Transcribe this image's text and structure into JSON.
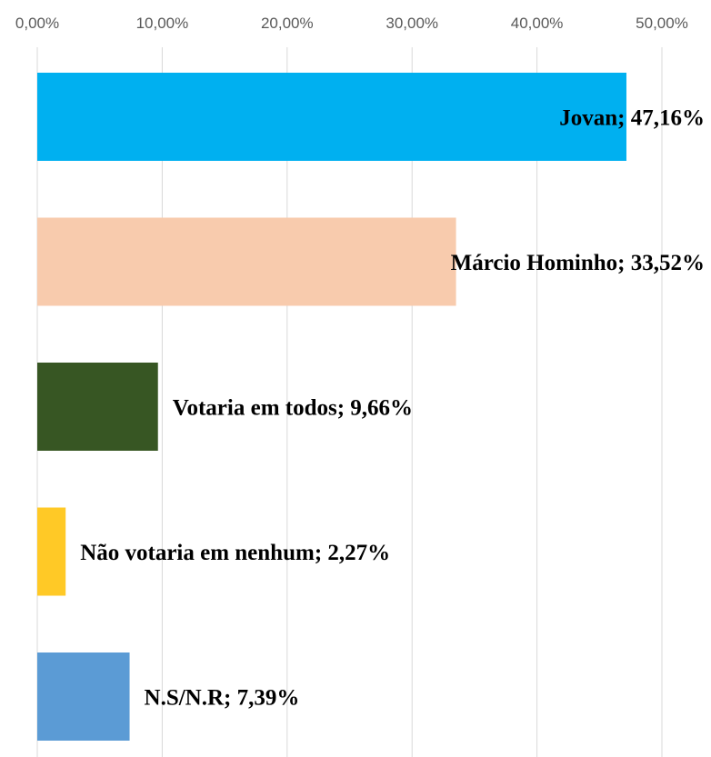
{
  "chart_data": {
    "type": "bar",
    "orientation": "horizontal",
    "title": "",
    "xlabel": "",
    "ylabel": "",
    "xlim": [
      0,
      0.5
    ],
    "x_ticks": [
      "0,00%",
      "10,00%",
      "20,00%",
      "30,00%",
      "40,00%",
      "50,00%"
    ],
    "x_tick_values": [
      0,
      0.1,
      0.2,
      0.3,
      0.4,
      0.5
    ],
    "x_axis_position": "top",
    "grid": true,
    "legend": "none",
    "categories": [
      "Jovan",
      "Márcio Hominho",
      "Votaria em todos",
      "Não votaria em nenhum",
      "N.S/N.R"
    ],
    "values": [
      0.4716,
      0.3352,
      0.0966,
      0.0227,
      0.0739
    ],
    "data_labels": [
      "Jovan; 47,16%",
      "Márcio Hominho; 33,52%",
      "Votaria em todos; 9,66%",
      "Não votaria em nenhum; 2,27%",
      "N.S/N.R; 7,39%"
    ],
    "colors": [
      "#00b0f0",
      "#f8cbad",
      "#375623",
      "#ffc926",
      "#5b9bd5"
    ]
  }
}
